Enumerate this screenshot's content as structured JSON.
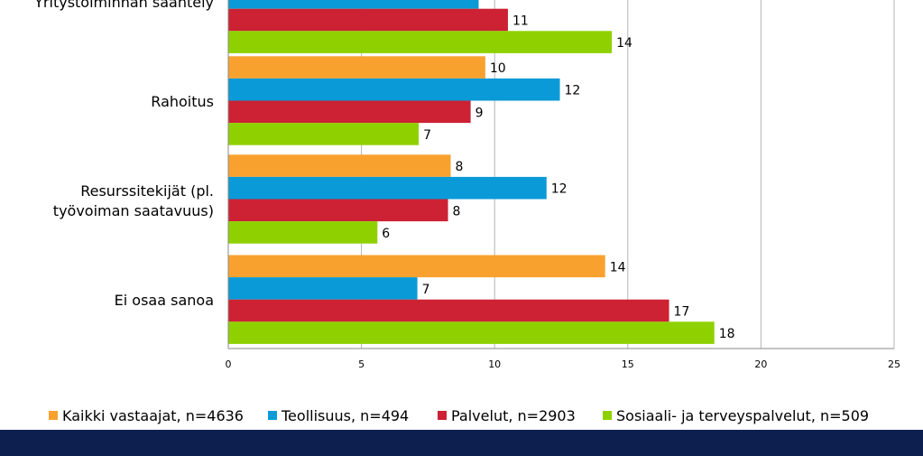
{
  "chart_data": {
    "type": "bar",
    "orientation": "horizontal",
    "categories": [
      "Yritystoiminnan sääntely",
      "Rahoitus",
      "Resurssitekijät (pl. työvoiman saatavuus)",
      "Ei osaa sanoa"
    ],
    "series": [
      {
        "name": "Kaikki vastaajat, n=4636",
        "color": "#f9a12f",
        "values": [
          null,
          10,
          8,
          14
        ],
        "labels": [
          "",
          "10",
          "8",
          "14"
        ],
        "plot_values": [
          null,
          9.65,
          8.35,
          14.15
        ]
      },
      {
        "name": "Teollisuus, n=494",
        "color": "#0a9ad7",
        "values": [
          9,
          12,
          12,
          7
        ],
        "labels": [
          "",
          "12",
          "12",
          "7"
        ],
        "plot_values": [
          9.4,
          12.45,
          11.95,
          7.1
        ]
      },
      {
        "name": "Palvelut, n=2903",
        "color": "#cc2233",
        "values": [
          11,
          9,
          8,
          17
        ],
        "labels": [
          "11",
          "9",
          "8",
          "17"
        ],
        "plot_values": [
          10.5,
          9.1,
          8.25,
          16.55
        ]
      },
      {
        "name": "Sosiaali- ja terveyspalvelut, n=509",
        "color": "#8fd100",
        "values": [
          14,
          7,
          6,
          18
        ],
        "labels": [
          "14",
          "7",
          "6",
          "18"
        ],
        "plot_values": [
          14.4,
          7.15,
          5.6,
          18.25
        ]
      }
    ],
    "xlim": [
      0,
      25
    ],
    "xticks": [
      "0",
      "5",
      "10",
      "15",
      "20",
      "25"
    ],
    "grid": true,
    "legend_position": "bottom"
  },
  "colors": {
    "footer_band": "#0d1f4f",
    "gridline": "#b5b5b5"
  }
}
